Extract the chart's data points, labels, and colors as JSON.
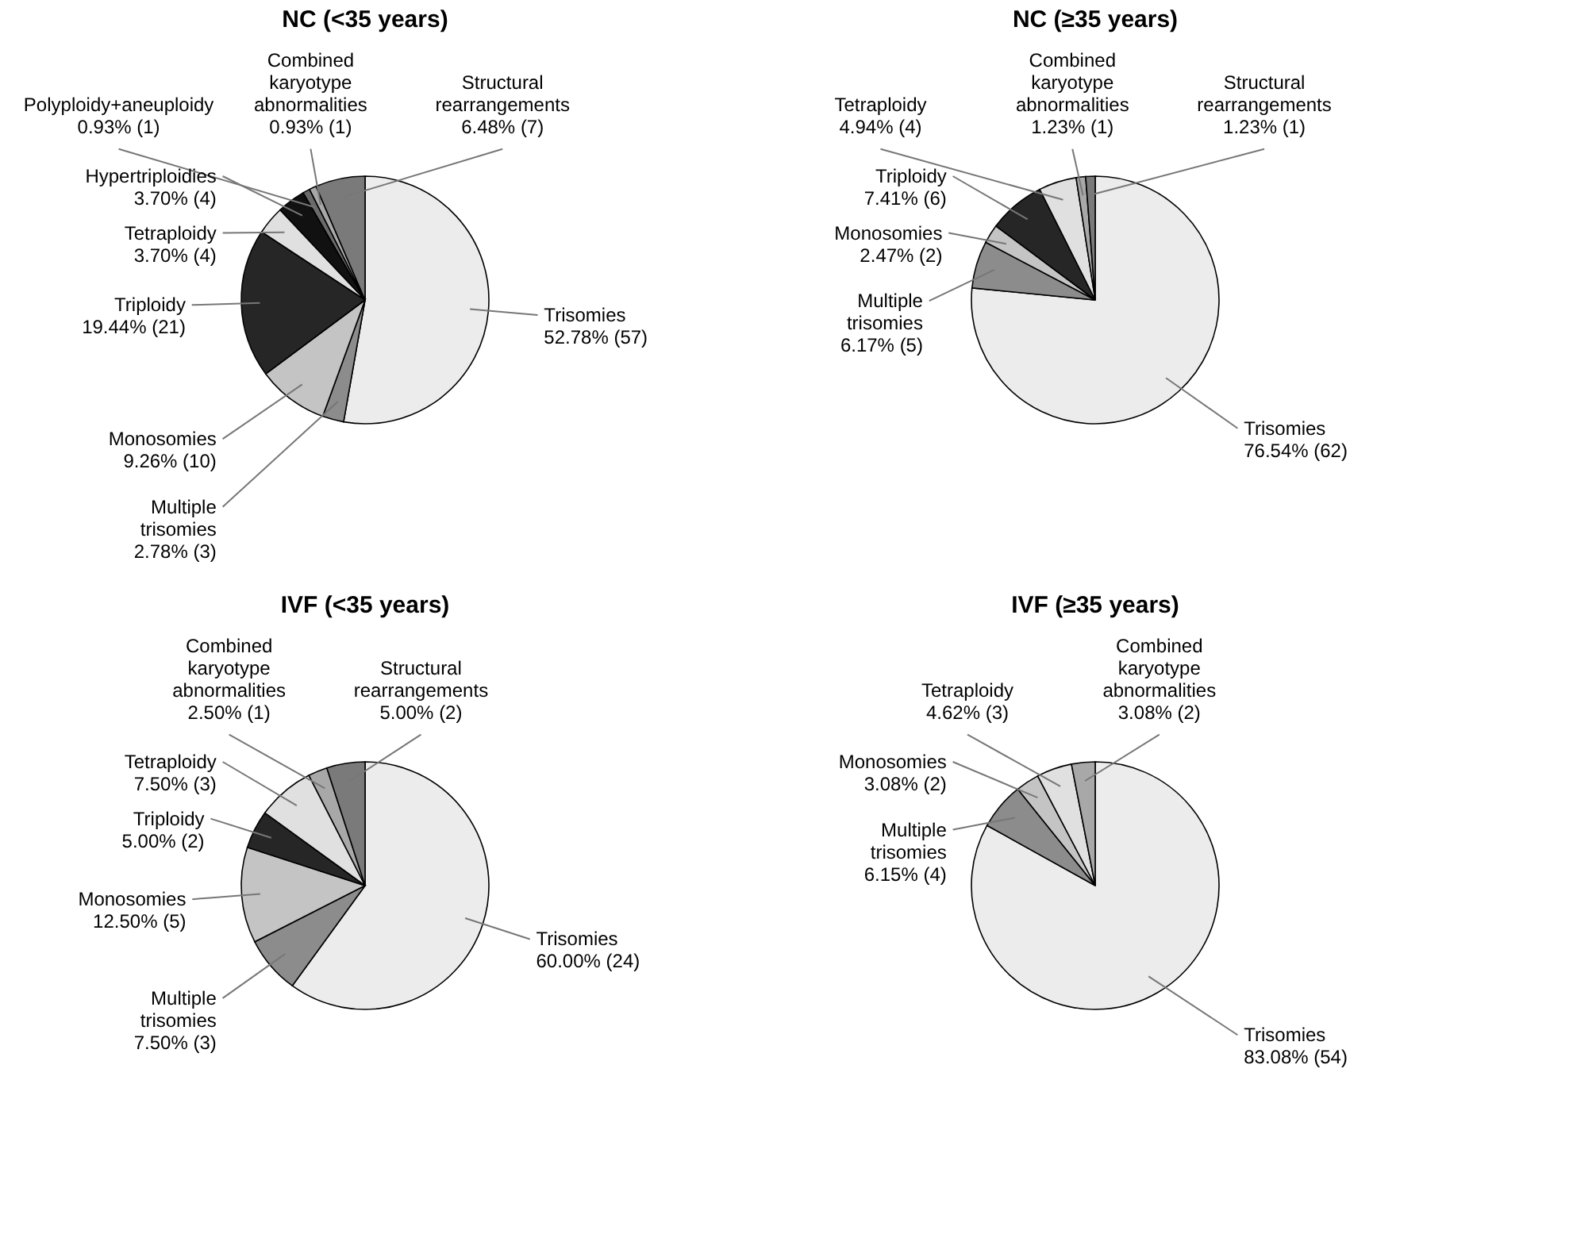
{
  "chart_data": [
    {
      "type": "pie",
      "title": "NC (<35 years)",
      "categories": [
        "Trisomies",
        "Multiple trisomies",
        "Monosomies",
        "Triploidy",
        "Tetraploidy",
        "Hypertriploidies",
        "Polyploidy+aneuploidy",
        "Combined karyotype abnormalities",
        "Structural rearrangements"
      ],
      "values": [
        57,
        3,
        10,
        21,
        4,
        4,
        1,
        1,
        7
      ],
      "value_labels": [
        "52.78% (57)",
        "2.78% (3)",
        "9.26% (10)",
        "19.44% (21)",
        "3.70% (4)",
        "3.70% (4)",
        "0.93% (1)",
        "0.93% (1)",
        "6.48% (7)"
      ],
      "colors": [
        "#ececec",
        "#8c8c8c",
        "#c4c4c4",
        "#262626",
        "#e0e0e0",
        "#111111",
        "#6a6a6a",
        "#a8a8a8",
        "#7a7a7a"
      ]
    },
    {
      "type": "pie",
      "title": "NC (≥35 years)",
      "categories": [
        "Trisomies",
        "Multiple trisomies",
        "Monosomies",
        "Triploidy",
        "Tetraploidy",
        "Combined karyotype abnormalities",
        "Structural rearrangements"
      ],
      "values": [
        62,
        5,
        2,
        6,
        4,
        1,
        1
      ],
      "value_labels": [
        "76.54% (62)",
        "6.17% (5)",
        "2.47% (2)",
        "7.41% (6)",
        "4.94% (4)",
        "1.23% (1)",
        "1.23% (1)"
      ],
      "colors": [
        "#ececec",
        "#8c8c8c",
        "#c4c4c4",
        "#262626",
        "#e0e0e0",
        "#a8a8a8",
        "#7a7a7a"
      ]
    },
    {
      "type": "pie",
      "title": "IVF (<35 years)",
      "categories": [
        "Trisomies",
        "Multiple trisomies",
        "Monosomies",
        "Triploidy",
        "Tetraploidy",
        "Combined karyotype abnormalities",
        "Structural rearrangements"
      ],
      "values": [
        24,
        3,
        5,
        2,
        3,
        1,
        2
      ],
      "value_labels": [
        "60.00% (24)",
        "7.50% (3)",
        "12.50% (5)",
        "5.00% (2)",
        "7.50% (3)",
        "2.50% (1)",
        "5.00% (2)"
      ],
      "colors": [
        "#ececec",
        "#8c8c8c",
        "#c4c4c4",
        "#262626",
        "#e0e0e0",
        "#a8a8a8",
        "#7a7a7a"
      ]
    },
    {
      "type": "pie",
      "title": "IVF (≥35 years)",
      "categories": [
        "Trisomies",
        "Multiple trisomies",
        "Monosomies",
        "Tetraploidy",
        "Combined karyotype abnormalities"
      ],
      "values": [
        54,
        4,
        2,
        3,
        2
      ],
      "value_labels": [
        "83.08% (54)",
        "6.15% (4)",
        "3.08% (2)",
        "4.62% (3)",
        "3.08% (2)"
      ],
      "colors": [
        "#ececec",
        "#8c8c8c",
        "#c4c4c4",
        "#e0e0e0",
        "#a8a8a8"
      ]
    }
  ]
}
